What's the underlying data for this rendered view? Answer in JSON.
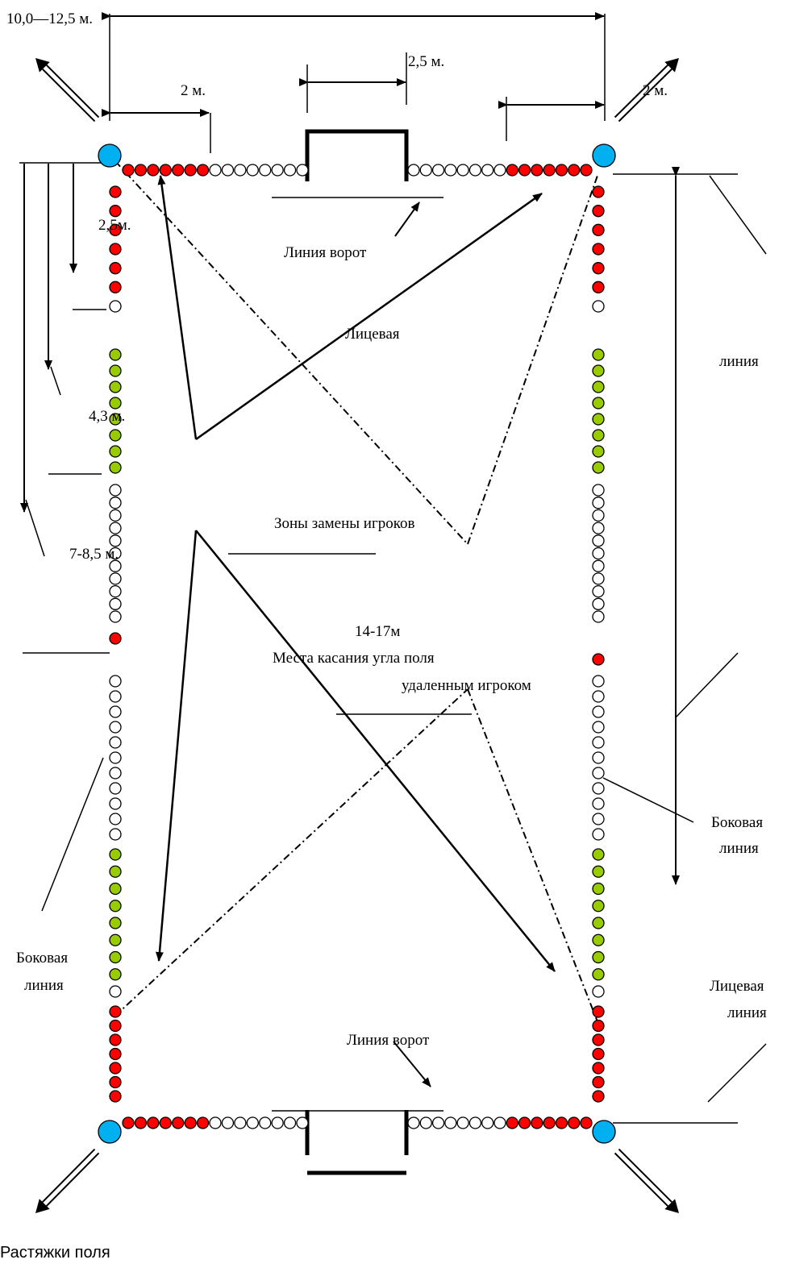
{
  "labels": {
    "width_total": "10,0—12,5 м.",
    "corner_offset_left": "2 м.",
    "goal_width": "2,5 м.",
    "corner_offset_right": "2 м.",
    "goal_line_top": "Линия ворот",
    "goal_line_bottom": "Линия ворот",
    "end_line_word": "Лицевая",
    "line_word_right": "линия",
    "side_mark_1": "2,5м.",
    "side_mark_2": "4,3 м.",
    "side_mark_3": "7-8,5 м.",
    "substitution_zones": "Зоны замены игроков",
    "length_total": "14-17м",
    "touch_places_1": "Места касания угла поля",
    "touch_places_2": "удаленным игроком",
    "side_line_right_1": "Боковая",
    "side_line_right_2": "линия",
    "side_line_left_1": "Боковая",
    "side_line_left_2": "линия",
    "end_line_right_1": "Лицевая",
    "end_line_right_2": "линия"
  },
  "colors": {
    "red": "#ff0000",
    "green": "#99cc00",
    "white": "#ffffff",
    "corner": "#00b0f0",
    "stroke": "#000000"
  },
  "caption": "Растяжки поля"
}
